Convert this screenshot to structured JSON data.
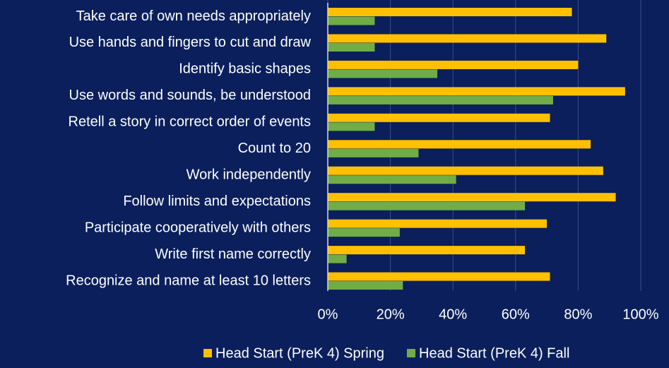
{
  "chart_data": {
    "type": "hbar",
    "categories": [
      "Take care of own needs appropriately",
      "Use hands and fingers to cut and draw",
      "Identify basic shapes",
      "Use words and sounds, be understood",
      "Retell a story in correct order of events",
      "Count to 20",
      "Work independently",
      "Follow limits and expectations",
      "Participate cooperatively with others",
      "Write first name correctly",
      "Recognize and name at least 10 letters"
    ],
    "series": [
      {
        "name": "Head Start (PreK 4) Spring",
        "color": "#FFC000",
        "values": [
          78,
          89,
          80,
          95,
          71,
          84,
          88,
          92,
          70,
          63,
          71
        ]
      },
      {
        "name": "Head Start (PreK 4) Fall",
        "color": "#70AD47",
        "values": [
          15,
          15,
          35,
          72,
          15,
          29,
          41,
          63,
          23,
          6,
          24
        ]
      }
    ],
    "xlim": [
      0,
      100
    ],
    "xticks": [
      {
        "value": 0,
        "label": "0%"
      },
      {
        "value": 20,
        "label": "20%"
      },
      {
        "value": 40,
        "label": "40%"
      },
      {
        "value": 60,
        "label": "60%"
      },
      {
        "value": 80,
        "label": "80%"
      },
      {
        "value": 100,
        "label": "100%"
      }
    ],
    "grid": true,
    "legend": "bottom"
  }
}
